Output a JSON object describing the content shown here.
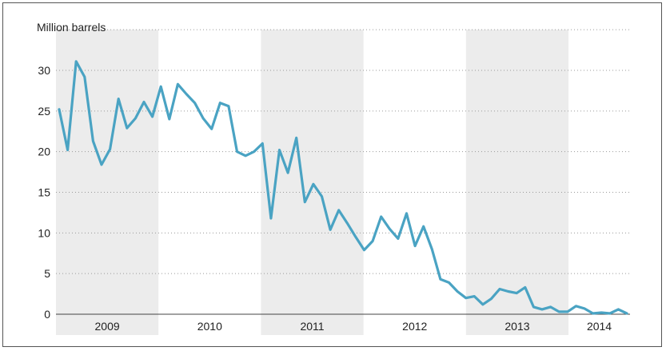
{
  "chart_data": {
    "type": "line",
    "ylabel": "Million barrels",
    "ylim": [
      0,
      35
    ],
    "yticks": [
      0,
      5,
      10,
      15,
      20,
      25,
      30
    ],
    "grid": "horizontal dotted",
    "years": [
      "2009",
      "2010",
      "2011",
      "2012",
      "2013",
      "2014"
    ],
    "line_color": "#4aa3c3",
    "shade_color": "#ececec",
    "x_start": "2009-01",
    "series": [
      {
        "values": [
          25.2,
          20.2,
          31.1,
          29.2,
          21.3,
          18.4,
          20.3,
          26.5,
          22.9,
          24.1,
          26.1,
          24.3,
          28.0,
          24.0,
          28.3,
          27.1,
          26.0,
          24.1,
          22.8,
          26.0,
          25.6,
          20.0,
          19.5,
          20.0,
          21.0,
          11.8,
          20.2,
          17.4,
          21.7,
          13.8,
          16.0,
          14.5,
          10.4,
          12.8,
          11.2,
          9.5,
          7.9,
          9.0,
          12.0,
          10.5,
          9.3,
          12.4,
          8.4,
          10.8,
          8.0,
          4.3,
          3.9,
          2.8,
          2.0,
          2.2,
          1.2,
          1.9,
          3.1,
          2.8,
          2.6,
          3.3,
          0.9,
          0.6,
          0.9,
          0.3,
          0.3,
          1.0,
          0.7,
          0.1,
          0.2,
          0.1,
          0.6,
          0.1
        ]
      }
    ]
  }
}
